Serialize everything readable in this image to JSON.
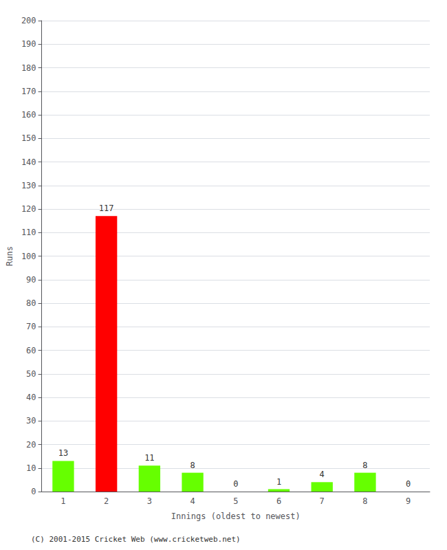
{
  "chart_data": {
    "type": "bar",
    "xlabel": "Innings (oldest to newest)",
    "ylabel": "Runs",
    "footer": "(C) 2001-2015 Cricket Web (www.cricketweb.net)",
    "categories": [
      "1",
      "2",
      "3",
      "4",
      "5",
      "6",
      "7",
      "8",
      "9"
    ],
    "values": [
      13,
      117,
      11,
      8,
      0,
      1,
      4,
      8,
      0
    ],
    "colors": [
      "#66ff00",
      "#ff0000",
      "#66ff00",
      "#66ff00",
      "#66ff00",
      "#66ff00",
      "#66ff00",
      "#66ff00",
      "#66ff00"
    ],
    "ylim": [
      0,
      200
    ],
    "yticks": [
      0,
      10,
      20,
      30,
      40,
      50,
      60,
      70,
      80,
      90,
      100,
      110,
      120,
      130,
      140,
      150,
      160,
      170,
      180,
      190,
      200
    ],
    "grid": true,
    "data_labels": true
  }
}
